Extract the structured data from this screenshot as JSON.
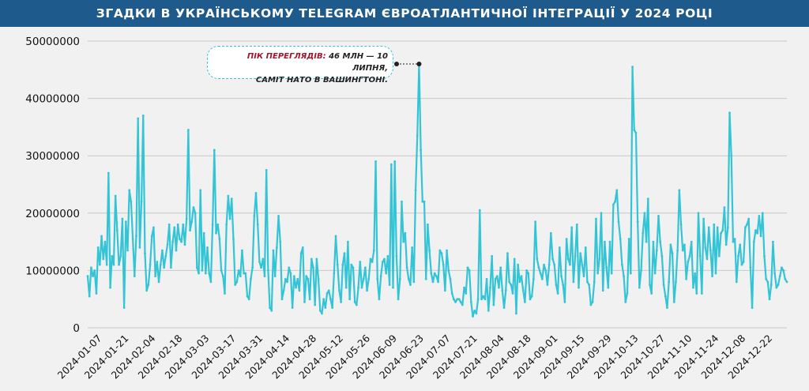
{
  "title": "ЗГАДКИ В УКРАЇНСЬКОМУ TELEGRAM ЄВРОАТЛАНТИЧНОЇ ІНТЕГРАЦІЇ У 2024 РОЦІ",
  "colors": {
    "title_bg": "#1f5a8c",
    "line": "#33c4d6",
    "grid": "#c8c8c8",
    "highlight": "#a0172e"
  },
  "annotation": {
    "label": "ПІК ПЕРЕГЛЯДІВ:",
    "line1": " 46 МЛН — 10 ЛИПНЯ,",
    "line2": "САМІТ НАТО В ВАШИНГТОНІ.",
    "point_index": 191
  },
  "chart_data": {
    "type": "line",
    "xlabel": "",
    "ylabel": "",
    "x_start": "2024-01-01",
    "x_end": "2024-12-31",
    "ylim": [
      0,
      50000000
    ],
    "yticks": [
      0,
      10000000,
      20000000,
      30000000,
      40000000,
      50000000
    ],
    "ytick_labels": [
      "0",
      "10000000",
      "20000000",
      "30000000",
      "40000000",
      "50000000"
    ],
    "xtick_labels": [
      "2024-01-07",
      "2024-01-21",
      "2024-02-04",
      "2024-02-18",
      "2024-03-03",
      "2024-03-17",
      "2024-03-31",
      "2024-04-14",
      "2024-04-28",
      "2024-05-12",
      "2024-05-26",
      "2024-06-09",
      "2024-06-23",
      "2024-07-07",
      "2024-07-21",
      "2024-08-04",
      "2024-08-18",
      "2024-09-01",
      "2024-09-15",
      "2024-09-29",
      "2024-10-13",
      "2024-10-27",
      "2024-11-10",
      "2024-11-24",
      "2024-12-08",
      "2024-12-22"
    ],
    "grid": true,
    "values": [
      9000000,
      5500000,
      10500000,
      9000000,
      10000000,
      6000000,
      14000000,
      11000000,
      16000000,
      12000000,
      15000000,
      11000000,
      27000000,
      7000000,
      12500000,
      11000000,
      23000000,
      17000000,
      11000000,
      12500000,
      19000000,
      3500000,
      18500000,
      13500000,
      24000000,
      22000000,
      15500000,
      9000000,
      16000000,
      36500000,
      14000000,
      22000000,
      37000000,
      13000000,
      6500000,
      7500000,
      11000000,
      16000000,
      17500000,
      9000000,
      11500000,
      8000000,
      11000000,
      13500000,
      10500000,
      12500000,
      14500000,
      18000000,
      10500000,
      15000000,
      17500000,
      13500000,
      18000000,
      15500000,
      15000000,
      18000000,
      14500000,
      19000000,
      34500000,
      17000000,
      18500000,
      21000000,
      20000000,
      10500000,
      9500000,
      24000000,
      10000000,
      16500000,
      9500000,
      14000000,
      9500000,
      8000000,
      18000000,
      31000000,
      16500000,
      18000000,
      15500000,
      10000000,
      9000000,
      6000000,
      18000000,
      23000000,
      19000000,
      22500000,
      15500000,
      7500000,
      8000000,
      10000000,
      9000000,
      13500000,
      9500000,
      9500000,
      5500000,
      5000000,
      8500000,
      10500000,
      19500000,
      23500000,
      18000000,
      11500000,
      10500000,
      12000000,
      9000000,
      27500000,
      10000000,
      3500000,
      3000000,
      13500000,
      9000000,
      14000000,
      19500000,
      15000000,
      5000000,
      6500000,
      8500000,
      8000000,
      10500000,
      9500000,
      3500000,
      9000000,
      7000000,
      8500000,
      6500000,
      13000000,
      14000000,
      4500000,
      9000000,
      8500000,
      5000000,
      12000000,
      10500000,
      4000000,
      12000000,
      8500000,
      3000000,
      2500000,
      5000000,
      3500000,
      6000000,
      6500000,
      5000000,
      3500000,
      9500000,
      16000000,
      11000000,
      6500000,
      4500000,
      11000000,
      13000000,
      7000000,
      15000000,
      5000000,
      11000000,
      10500000,
      4500000,
      4000000,
      7000000,
      11500000,
      7000000,
      8500000,
      10500000,
      6500000,
      8500000,
      12000000,
      11500000,
      13500000,
      29000000,
      8500000,
      5000000,
      9000000,
      11500000,
      12000000,
      9500000,
      12500000,
      7500000,
      28500000,
      7000000,
      29000000,
      12500000,
      5000000,
      8500000,
      22000000,
      15000000,
      16500000,
      10500000,
      8500000,
      7500000,
      14000000,
      8000000,
      24000000,
      33500000,
      46000000,
      31000000,
      22000000,
      22000000,
      8500000,
      18000000,
      13500000,
      9500000,
      8000000,
      9500000,
      9000000,
      8000000,
      13500000,
      13000000,
      11000000,
      6500000,
      13500000,
      10000000,
      8500000,
      6000000,
      5000000,
      4500000,
      5000000,
      5000000,
      4500000,
      4000000,
      7000000,
      6000000,
      10500000,
      10000000,
      4500000,
      2000000,
      3000000,
      2500000,
      5000000,
      20500000,
      5000000,
      5500000,
      5000000,
      8500000,
      3000000,
      7000000,
      12500000,
      4000000,
      8500000,
      9000000,
      7000000,
      10500000,
      6500000,
      3500000,
      6500000,
      13000000,
      8000000,
      7500000,
      6000000,
      12000000,
      2500000,
      11000000,
      8000000,
      9000000,
      6500000,
      4500000,
      10000000,
      9500000,
      5000000,
      5500000,
      8500000,
      18500000,
      12000000,
      10500000,
      9500000,
      8500000,
      11000000,
      10000000,
      7500000,
      11000000,
      16500000,
      12000000,
      11000000,
      7500000,
      6000000,
      14000000,
      9000000,
      7500000,
      4500000,
      15500000,
      12000000,
      11000000,
      17500000,
      8000000,
      12500000,
      18000000,
      7000000,
      13000000,
      11000000,
      9000000,
      14000000,
      8000000,
      7500000,
      4000000,
      4500000,
      8000000,
      19000000,
      9500000,
      12000000,
      20000000,
      6500000,
      15000000,
      10500000,
      7000000,
      15000000,
      9500000,
      21500000,
      22000000,
      24000000,
      18500000,
      15500000,
      11000000,
      9000000,
      4500000,
      6000000,
      15500000,
      9500000,
      45500000,
      34500000,
      34000000,
      18500000,
      7000000,
      10000000,
      16500000,
      20000000,
      15000000,
      22500000,
      7500000,
      6000000,
      15000000,
      9500000,
      13500000,
      19500000,
      15000000,
      12500000,
      7500000,
      5500000,
      3500000,
      8000000,
      14500000,
      13000000,
      4500000,
      8000000,
      13500000,
      24000000,
      18000000,
      13500000,
      14500000,
      8500000,
      11500000,
      12500000,
      15000000,
      7000000,
      9500000,
      6000000,
      20000000,
      12500000,
      6000000,
      19000000,
      14000000,
      12000000,
      17500000,
      13500000,
      9000000,
      18000000,
      9500000,
      17500000,
      12500000,
      16500000,
      17000000,
      21000000,
      14500000,
      17500000,
      37500000,
      30000000,
      15000000,
      15500000,
      8000000,
      12500000,
      14500000,
      11000000,
      11500000,
      17500000,
      18000000,
      19000000,
      10500000,
      3500000,
      15000000,
      17000000,
      16500000,
      19500000,
      16000000,
      20000000,
      12500000,
      8500000,
      8000000,
      5000000,
      7500000,
      15000000,
      9500000,
      7000000,
      7500000,
      9000000,
      10500000,
      10000000,
      8500000,
      8000000
    ]
  }
}
